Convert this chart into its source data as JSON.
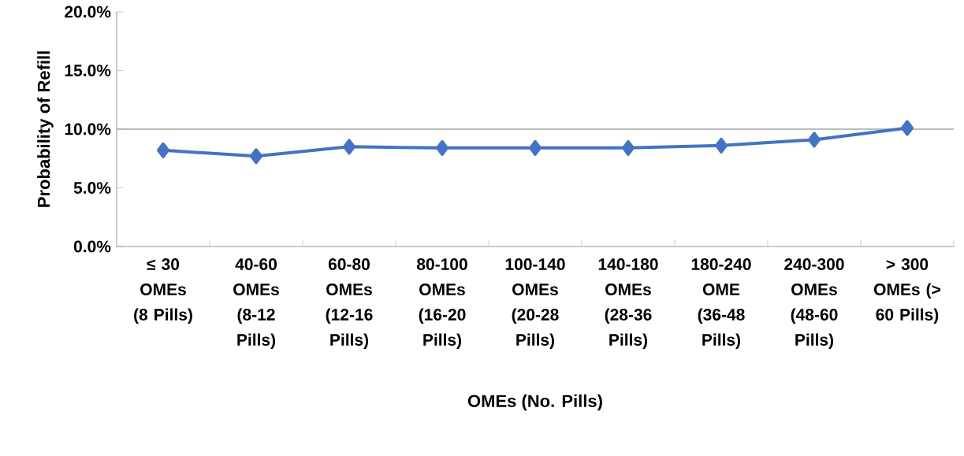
{
  "chart_data": {
    "type": "line",
    "xlabel": "OMEs (No. Pills)",
    "ylabel": "Probability of Refill",
    "categories": [
      "≤ 30 OMEs (8 Pills)",
      "40-60 OMEs (8-12 Pills)",
      "60-80 OMEs (12-16 Pills)",
      "80-100 OMEs (16-20 Pills)",
      "100-140 OMEs (20-28 Pills)",
      "140-180 OMEs (28-36 Pills)",
      "180-240 OME (36-48 Pills)",
      "240-300 OMEs (48-60 Pills)",
      "> 300 OMEs (> 60 Pills)"
    ],
    "values": [
      8.2,
      7.7,
      8.5,
      8.4,
      8.4,
      8.4,
      8.6,
      9.1,
      10.1
    ],
    "color": "#4472c4",
    "marker": "diamond",
    "line_style": "solid",
    "ylim": [
      0,
      20
    ],
    "yticks": [
      {
        "value": 0,
        "label": "0.0%"
      },
      {
        "value": 5,
        "label": "5.0%"
      },
      {
        "value": 10,
        "label": "10.0%"
      },
      {
        "value": 15,
        "label": "15.0%"
      },
      {
        "value": 20,
        "label": "20.0%"
      }
    ],
    "ref_lines": [
      {
        "axis": "y",
        "value": 10,
        "color": "#a6a6a6"
      }
    ],
    "grid": false
  }
}
